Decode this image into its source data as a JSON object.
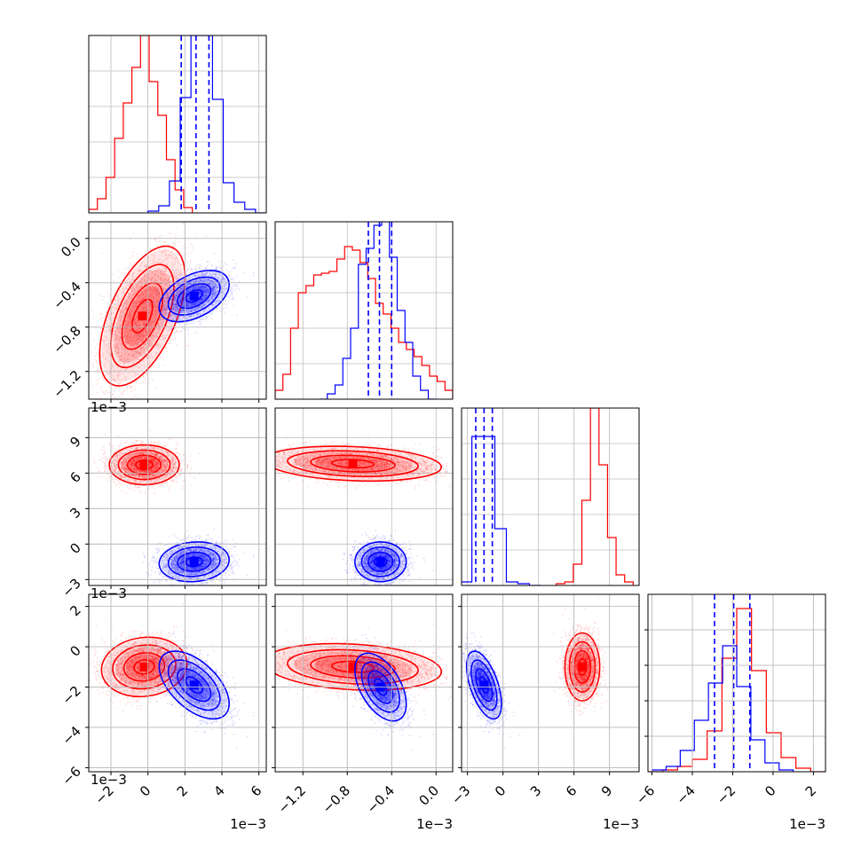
{
  "colors": {
    "red": "#ff0000",
    "blue": "#0000ff"
  },
  "chart_data": {
    "type": "corner",
    "title": "",
    "n_params": 4,
    "series": [
      {
        "name": "",
        "color": "#ff0000"
      },
      {
        "name": "",
        "color": "#0000ff"
      }
    ],
    "parameters": [
      {
        "name": "",
        "range": [
          -3.2,
          6.4
        ],
        "ticks": [
          -2,
          0,
          2,
          4,
          6
        ],
        "ticklabels": [
          "−2",
          "0",
          "2",
          "4",
          "6"
        ],
        "offset_label": "1e−3"
      },
      {
        "name": "",
        "range": [
          -1.45,
          0.15
        ],
        "ticks": [
          -1.2,
          -0.8,
          -0.4,
          0.0
        ],
        "ticklabels": [
          "−1.2",
          "−0.8",
          "−0.4",
          "0.0"
        ],
        "offset_label": "1e−3"
      },
      {
        "name": "",
        "range": [
          -3.5,
          11.5
        ],
        "ticks": [
          -3,
          0,
          3,
          6,
          9
        ],
        "ticklabels": [
          "−3",
          "0",
          "3",
          "6",
          "9"
        ],
        "offset_label": "1e−3"
      },
      {
        "name": "",
        "range": [
          -6.2,
          2.6
        ],
        "ticks": [
          -6,
          -4,
          -2,
          0,
          2
        ],
        "ticklabels": [
          "−6",
          "−4",
          "−2",
          "0",
          "2"
        ],
        "offset_label": "1e−3"
      }
    ],
    "blue_quantiles": [
      [
        1.8,
        2.6,
        3.3
      ],
      [
        -0.61,
        -0.51,
        -0.4
      ],
      [
        -2.3,
        -1.6,
        -0.9
      ],
      [
        -2.9,
        -1.95,
        -1.15
      ]
    ],
    "histograms": [
      {
        "red": {
          "edges_range": [
            -3.2,
            2.4
          ],
          "counts": [
            0.02,
            0.08,
            0.2,
            0.42,
            0.62,
            0.82,
            1.0,
            0.74,
            0.55,
            0.3,
            0.13,
            0.03
          ]
        },
        "blue": {
          "edges_range": [
            0.0,
            6.4
          ],
          "counts": [
            0.01,
            0.04,
            0.18,
            0.65,
            1.0,
            1.0,
            0.64,
            0.17,
            0.06,
            0.02,
            0.0
          ]
        }
      },
      {
        "red": {
          "edges_range": [
            -1.45,
            0.15
          ],
          "counts": [
            0.05,
            0.14,
            0.4,
            0.6,
            0.64,
            0.7,
            0.71,
            0.72,
            0.79,
            0.86,
            0.84,
            0.77,
            0.68,
            0.54,
            0.48,
            0.4,
            0.32,
            0.28,
            0.24,
            0.19,
            0.13,
            0.1,
            0.05
          ]
        },
        "blue": {
          "edges_range": [
            -1.05,
            0.0
          ],
          "counts": [
            0.0,
            0.03,
            0.08,
            0.23,
            0.4,
            0.76,
            0.85,
            0.98,
            1.0,
            0.8,
            0.5,
            0.32,
            0.13,
            0.05,
            0.0
          ]
        }
      },
      {
        "red": {
          "edges_range": [
            4.5,
            11.0
          ],
          "counts": [
            0.01,
            0.02,
            0.12,
            0.48,
            1.0,
            0.68,
            0.27,
            0.06,
            0.02
          ]
        },
        "blue": {
          "edges_range": [
            -3.6,
            3.2
          ],
          "counts": [
            0.02,
            0.84,
            0.84,
            0.32,
            0.02,
            0.01,
            0.0
          ]
        }
      },
      {
        "red": {
          "edges_range": [
            -6.2,
            2.6
          ],
          "counts": [
            0.0,
            0.01,
            0.03,
            0.07,
            0.23,
            0.64,
            0.92,
            0.57,
            0.22,
            0.08,
            0.02,
            0.0
          ]
        },
        "blue": {
          "edges_range": [
            -6.0,
            1.0
          ],
          "counts": [
            0.01,
            0.03,
            0.12,
            0.29,
            0.5,
            0.71,
            0.48,
            0.18,
            0.05,
            0.01
          ]
        }
      }
    ],
    "cluster_notes": "2D panels show red and blue sample clouds with density contours",
    "clusters_2d": [
      {
        "row": 1,
        "col": 0,
        "red": {
          "mean": [
            -0.3,
            -0.7
          ],
          "sd": [
            1.1,
            0.3
          ],
          "rho": 0.55
        },
        "blue": {
          "mean": [
            2.5,
            -0.52
          ],
          "sd": [
            0.9,
            0.11
          ],
          "rho": 0.45
        }
      },
      {
        "row": 2,
        "col": 0,
        "red": {
          "mean": [
            -0.2,
            6.7
          ],
          "sd": [
            0.9,
            0.8
          ],
          "rho": 0.0
        },
        "blue": {
          "mean": [
            2.5,
            -1.5
          ],
          "sd": [
            0.9,
            0.8
          ],
          "rho": 0.1
        }
      },
      {
        "row": 2,
        "col": 1,
        "red": {
          "mean": [
            -0.75,
            6.8
          ],
          "sd": [
            0.38,
            0.7
          ],
          "rho": -0.2
        },
        "blue": {
          "mean": [
            -0.5,
            -1.5
          ],
          "sd": [
            0.11,
            0.8
          ],
          "rho": 0.0
        }
      },
      {
        "row": 3,
        "col": 0,
        "red": {
          "mean": [
            -0.2,
            -1.0
          ],
          "sd": [
            1.1,
            0.7
          ],
          "rho": 0.1
        },
        "blue": {
          "mean": [
            2.5,
            -1.9
          ],
          "sd": [
            0.9,
            0.8
          ],
          "rho": -0.55
        }
      },
      {
        "row": 3,
        "col": 1,
        "red": {
          "mean": [
            -0.75,
            -1.0
          ],
          "sd": [
            0.38,
            0.55
          ],
          "rho": -0.2
        },
        "blue": {
          "mean": [
            -0.5,
            -2.0
          ],
          "sd": [
            0.11,
            0.8
          ],
          "rho": -0.5
        }
      },
      {
        "row": 3,
        "col": 2,
        "red": {
          "mean": [
            6.7,
            -1.0
          ],
          "sd": [
            0.7,
            0.8
          ],
          "rho": 0.0
        },
        "blue": {
          "mean": [
            -1.6,
            -1.9
          ],
          "sd": [
            0.7,
            0.8
          ],
          "rho": -0.55
        }
      }
    ]
  }
}
